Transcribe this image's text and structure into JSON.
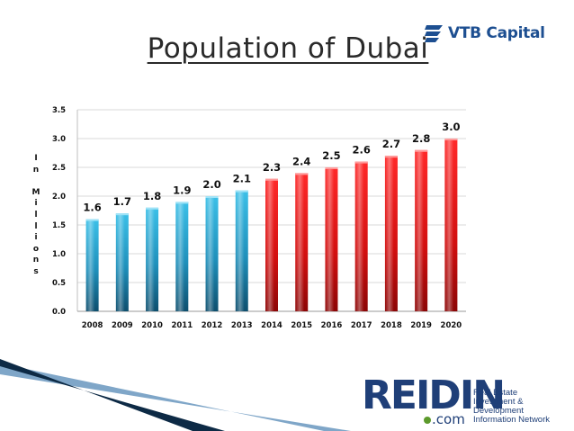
{
  "slide": {
    "title": "Population of Dubai",
    "vtb_logo_text": "VTB Capital",
    "reidin_logo_word": "REIDIN",
    "reidin_logo_com": ".com",
    "reidin_tagline": [
      "Real Estate",
      "Investment & Development",
      "Information Network"
    ]
  },
  "colors": {
    "historical_bar": "#2fb2dd",
    "forecast_bar": "#e01515",
    "brand_blue": "#1d4f91",
    "grid": "#d9d9d9"
  },
  "chart_data": {
    "type": "bar",
    "title": "Population of Dubai",
    "ylabel": "In Millions",
    "ylabel_letters": [
      "I",
      "n",
      "",
      "M",
      "i",
      "l",
      "l",
      "i",
      "o",
      "n",
      "s"
    ],
    "xlabel": "",
    "ylim": [
      0,
      3.5
    ],
    "yticks": [
      "0.0",
      "0.5",
      "1.0",
      "1.5",
      "2.0",
      "2.5",
      "3.0",
      "3.5"
    ],
    "ytick_values": [
      0,
      0.5,
      1.0,
      1.5,
      2.0,
      2.5,
      3.0,
      3.5
    ],
    "grid": true,
    "categories": [
      "2008",
      "2009",
      "2010",
      "2011",
      "2012",
      "2013",
      "2014",
      "2015",
      "2016",
      "2017",
      "2018",
      "2019",
      "2020"
    ],
    "values": [
      1.6,
      1.7,
      1.8,
      1.9,
      2.0,
      2.1,
      2.3,
      2.4,
      2.5,
      2.6,
      2.7,
      2.8,
      3.0
    ],
    "data_labels": [
      "1.6",
      "1.7",
      "1.8",
      "1.9",
      "2.0",
      "2.1",
      "2.3",
      "2.4",
      "2.5",
      "2.6",
      "2.7",
      "2.8",
      "3.0"
    ],
    "series_group": [
      "historical",
      "historical",
      "historical",
      "historical",
      "historical",
      "historical",
      "forecast",
      "forecast",
      "forecast",
      "forecast",
      "forecast",
      "forecast",
      "forecast"
    ]
  }
}
